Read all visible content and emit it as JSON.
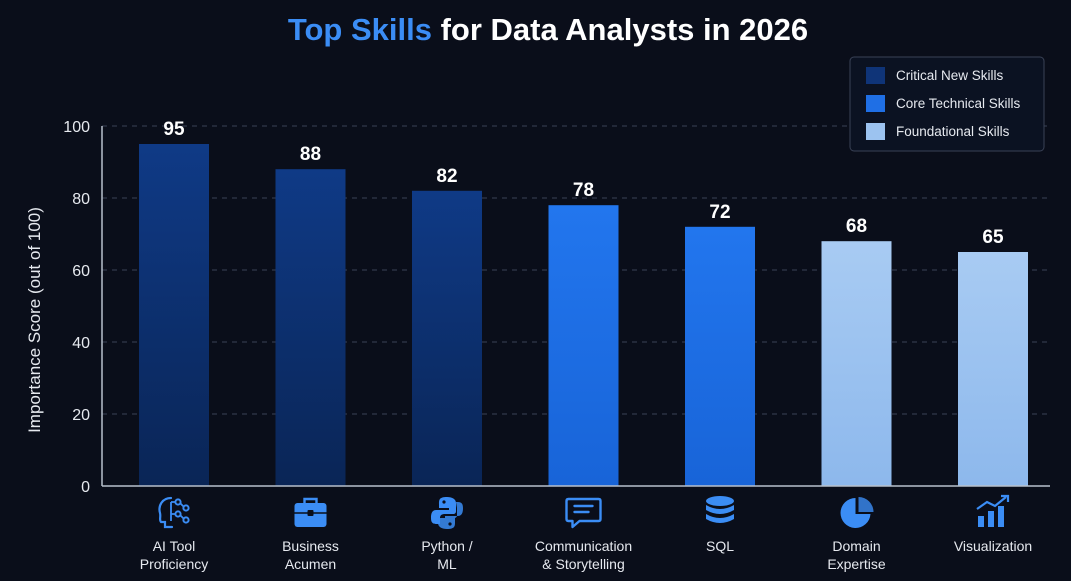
{
  "chart_data": {
    "type": "bar",
    "title": {
      "accent": "Top Skills",
      "rest": " for Data Analysts in 2026"
    },
    "ylabel": "Importance Score (out of 100)",
    "xlabel": "",
    "ylim": [
      0,
      100
    ],
    "yticks": [
      0,
      20,
      40,
      60,
      80,
      100
    ],
    "grid": true,
    "legend_position": "top-right",
    "legend": [
      {
        "name": "Critical New Skills",
        "color": "#0f3478"
      },
      {
        "name": "Core Technical Skills",
        "color": "#1f6fe5"
      },
      {
        "name": "Foundational Skills",
        "color": "#9cc3f0"
      }
    ],
    "bars": [
      {
        "label": [
          "AI Tool",
          "Proficiency"
        ],
        "value": 95,
        "group": 0,
        "icon": "network-head-icon"
      },
      {
        "label": [
          "Business",
          "Acumen"
        ],
        "value": 88,
        "group": 0,
        "icon": "briefcase-icon"
      },
      {
        "label": [
          "Python /",
          "ML"
        ],
        "value": 82,
        "group": 0,
        "icon": "python-icon"
      },
      {
        "label": [
          "Communication",
          "& Storytelling"
        ],
        "value": 78,
        "group": 1,
        "icon": "chat-bubble-icon"
      },
      {
        "label": [
          "SQL"
        ],
        "value": 72,
        "group": 1,
        "icon": "database-icon"
      },
      {
        "label": [
          "Domain",
          "Expertise"
        ],
        "value": 68,
        "group": 2,
        "icon": "pie-chart-icon"
      },
      {
        "label": [
          "Visualization"
        ],
        "value": 65,
        "group": 2,
        "icon": "bar-trend-icon"
      }
    ],
    "icon_color": "#3b8df5"
  }
}
